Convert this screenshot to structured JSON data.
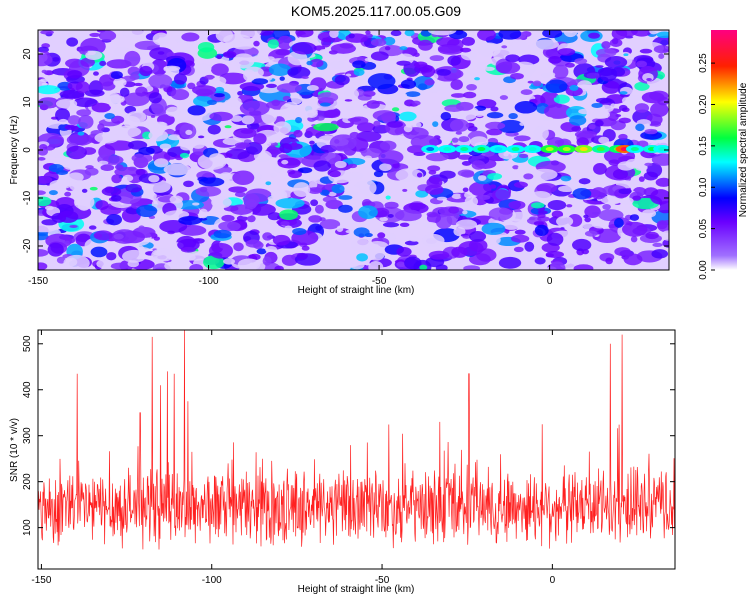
{
  "title": "KOM5.2025.117.00.05.G09",
  "chart_data": [
    {
      "type": "heatmap",
      "xlabel": "Height of straight line (km)",
      "ylabel": "Frequency (Hz)",
      "xlim": [
        -150,
        35
      ],
      "ylim": [
        -25,
        25
      ],
      "xticks": [
        -150,
        -100,
        -50,
        0
      ],
      "xtick_labels": [
        "-150",
        "-100",
        "-50",
        "0"
      ],
      "yticks": [
        -20,
        -10,
        0,
        10,
        20
      ],
      "ytick_labels": [
        "-20",
        "-10",
        "0",
        "10",
        "20"
      ],
      "colorbar": {
        "label": "Normalized spectral amplitude",
        "range": [
          0,
          0.29
        ],
        "ticks": [
          0,
          0.05,
          0.1,
          0.15,
          0.2,
          0.25
        ],
        "tick_labels": [
          "0.00",
          "0.05",
          "0.10",
          "0.15",
          "0.20",
          "0.25"
        ],
        "colors": [
          "#ffffff",
          "#7b00ff",
          "#0000ff",
          "#00ffff",
          "#00ff00",
          "#ffff00",
          "#ff0000",
          "#ff0080"
        ]
      },
      "signal_track": {
        "frequency": 0.2,
        "x": [
          -35,
          -30,
          -25,
          -20,
          -15,
          -10,
          -5,
          0,
          5,
          10,
          15,
          20,
          22,
          25,
          30,
          33
        ],
        "amplitude": [
          0.1,
          0.13,
          0.14,
          0.15,
          0.12,
          0.14,
          0.13,
          0.18,
          0.18,
          0.2,
          0.16,
          0.17,
          0.26,
          0.14,
          0.15,
          0.13
        ]
      },
      "grid": false
    },
    {
      "type": "line",
      "xlabel": "Height of straight line (km)",
      "ylabel": "SNR (10 * v/v)",
      "xlim": [
        -151,
        36
      ],
      "ylim": [
        10,
        530
      ],
      "xticks": [
        -150,
        -100,
        -50,
        0
      ],
      "xtick_labels": [
        "-150",
        "-100",
        "-50",
        "0"
      ],
      "yticks": [
        100,
        200,
        300,
        400,
        500
      ],
      "ytick_labels": [
        "100",
        "200",
        "300",
        "400",
        "500"
      ],
      "series": [
        {
          "color": "#ff2020",
          "baseline": 145,
          "spread": 95,
          "peaks": [
            [
              -139.5,
              435
            ],
            [
              -117.5,
              515
            ],
            [
              -108,
              530
            ],
            [
              -113,
              440
            ],
            [
              -111,
              435
            ],
            [
              -3,
              325
            ],
            [
              -24.5,
              435
            ],
            [
              17,
              500
            ],
            [
              20.5,
              520
            ],
            [
              -33,
              330
            ],
            [
              -115,
              410
            ],
            [
              -121,
              350
            ],
            [
              -107,
              375
            ]
          ]
        }
      ],
      "grid": false
    }
  ]
}
